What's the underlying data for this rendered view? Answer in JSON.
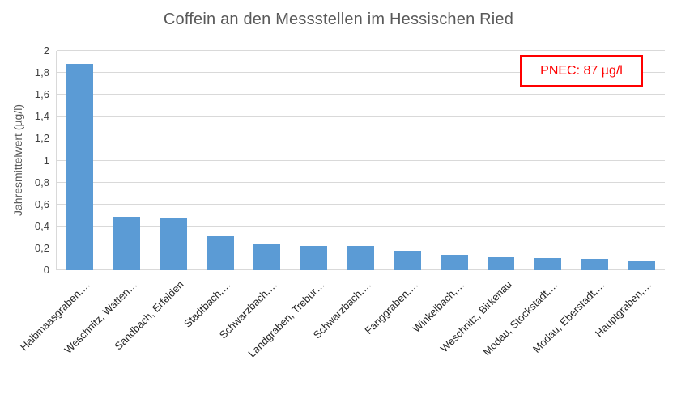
{
  "chart": {
    "title": "Coffein an den Messstellen im Hessischen Ried",
    "y_axis_title": "Jahresmittelwert (µg/l)",
    "annotation_label": "PNEC: 87 µg/l"
  },
  "chart_data": {
    "type": "bar",
    "title": "Coffein an den Messstellen im Hessischen Ried",
    "xlabel": "",
    "ylabel": "Jahresmittelwert (µg/l)",
    "categories": [
      "Halbmaasgraben,…",
      "Weschnitz, Watten…",
      "Sandbach, Erfelden",
      "Stadtbach,…",
      "Schwarzbach,…",
      "Landgraben, Trebur…",
      "Schwarzbach,…",
      "Fanggraben,…",
      "Winkelbach,…",
      "Weschnitz, Birkenau",
      "Modau, Stockstadt,…",
      "Modau, Eberstadt,…",
      "Hauptgraben,…"
    ],
    "values": [
      1.88,
      0.49,
      0.47,
      0.31,
      0.24,
      0.22,
      0.22,
      0.18,
      0.14,
      0.12,
      0.11,
      0.1,
      0.08
    ],
    "ylim": [
      0,
      2
    ],
    "y_ticks": [
      {
        "value": 0,
        "label": "0"
      },
      {
        "value": 0.2,
        "label": "0,2"
      },
      {
        "value": 0.4,
        "label": "0,4"
      },
      {
        "value": 0.6,
        "label": "0,6"
      },
      {
        "value": 0.8,
        "label": "0,8"
      },
      {
        "value": 1,
        "label": "1"
      },
      {
        "value": 1.2,
        "label": "1,2"
      },
      {
        "value": 1.4,
        "label": "1,4"
      },
      {
        "value": 1.6,
        "label": "1,6"
      },
      {
        "value": 1.8,
        "label": "1,8"
      },
      {
        "value": 2,
        "label": "2"
      }
    ],
    "grid": true,
    "legend": false,
    "bar_color": "#5b9bd5",
    "gridline_color": "#d9d9d9",
    "title_color": "#595959",
    "annotation": {
      "text": "PNEC: 87 µg/l",
      "text_color": "#ff0000",
      "border_color": "#ff0000",
      "position": "top-right"
    }
  }
}
